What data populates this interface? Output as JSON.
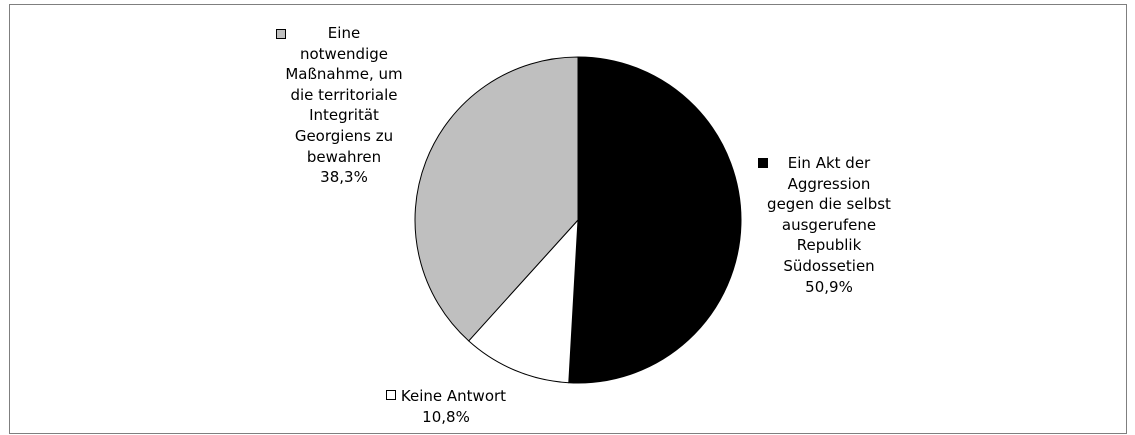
{
  "chart_data": {
    "type": "pie",
    "title": "",
    "start_angle_deg": 0,
    "direction": "clockwise",
    "slices": [
      {
        "label_lines": [
          "Ein Akt der",
          "Aggression",
          "gegen die selbst",
          "ausgerufene",
          "Republik",
          "Südossetien"
        ],
        "value": 50.9,
        "value_label": "50,9%",
        "color": "#000000"
      },
      {
        "label_lines": [
          "Keine Antwort"
        ],
        "value": 10.8,
        "value_label": "10,8%",
        "color": "#ffffff"
      },
      {
        "label_lines": [
          "Eine",
          "notwendige",
          "Maßnahme, um",
          "die territoriale",
          "Integrität",
          "Georgiens zu",
          "bewahren"
        ],
        "value": 38.3,
        "value_label": "38,3%",
        "color": "#bfbfbf"
      }
    ]
  }
}
